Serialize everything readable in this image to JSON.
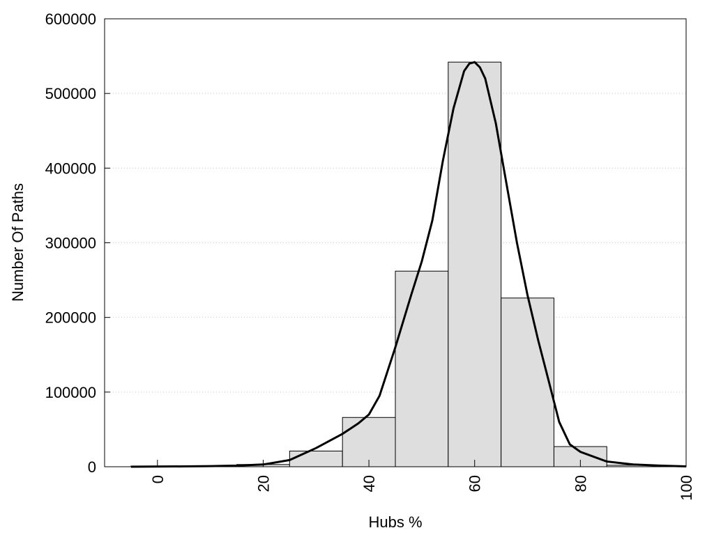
{
  "chart_data": {
    "type": "bar",
    "title": "",
    "xlabel": "Hubs %",
    "ylabel": "Number Of Paths",
    "xlim": [
      -10,
      100
    ],
    "ylim": [
      0,
      600000
    ],
    "x_ticks": [
      0,
      20,
      40,
      60,
      80,
      100
    ],
    "y_ticks": [
      0,
      100000,
      200000,
      300000,
      400000,
      500000,
      600000
    ],
    "grid": "horizontal dotted",
    "legend": "none",
    "bin_width": 10,
    "bars": [
      {
        "center": 0,
        "value": 1000
      },
      {
        "center": 10,
        "value": 1000
      },
      {
        "center": 20,
        "value": 3000
      },
      {
        "center": 30,
        "value": 21000
      },
      {
        "center": 40,
        "value": 66000
      },
      {
        "center": 50,
        "value": 262000
      },
      {
        "center": 60,
        "value": 542000
      },
      {
        "center": 70,
        "value": 226000
      },
      {
        "center": 80,
        "value": 27000
      },
      {
        "center": 90,
        "value": 2000
      }
    ],
    "fit_curve": {
      "x": [
        -5,
        5,
        10,
        15,
        20,
        25,
        30,
        35,
        38,
        40,
        42,
        45,
        48,
        50,
        52,
        54,
        56,
        58,
        59,
        60,
        61,
        62,
        64,
        66,
        68,
        70,
        72,
        74,
        76,
        78,
        80,
        85,
        90,
        95,
        100
      ],
      "y": [
        0,
        500,
        800,
        1500,
        3000,
        9000,
        25000,
        44000,
        58000,
        70000,
        95000,
        160000,
        230000,
        275000,
        330000,
        410000,
        480000,
        530000,
        540000,
        542000,
        535000,
        520000,
        460000,
        380000,
        300000,
        230000,
        170000,
        115000,
        60000,
        30000,
        20000,
        7000,
        3000,
        1500,
        500
      ]
    },
    "colors": {
      "bar_fill": "#dedede",
      "bar_edge": "#000000",
      "curve": "#000000"
    }
  }
}
